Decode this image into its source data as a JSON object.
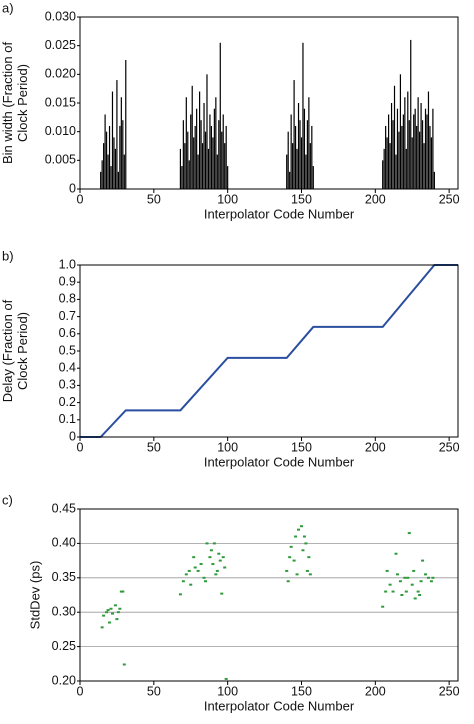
{
  "chart_data": [
    {
      "type": "bar",
      "label": "a)",
      "color": "#000000",
      "ylabel": [
        "Bin width (Fraction of",
        "Clock Period)"
      ],
      "xlabel": "Interpolator Code Number",
      "xlim": [
        0,
        256
      ],
      "xticks": [
        0,
        50,
        100,
        150,
        200,
        250
      ],
      "ylim": [
        0,
        0.03
      ],
      "yticks": [
        0,
        0.005,
        {
          "value": 0.01,
          "label": "0.010"
        },
        0.015,
        {
          "value": 0.02,
          "label": "0.020"
        },
        0.025,
        {
          "value": 0.03,
          "label": "0.030"
        }
      ],
      "grid": false,
      "x": [
        14,
        15,
        16,
        17,
        18,
        19,
        20,
        21,
        22,
        23,
        24,
        25,
        26,
        27,
        28,
        29,
        30,
        31,
        68,
        69,
        70,
        71,
        72,
        73,
        74,
        75,
        76,
        77,
        78,
        79,
        80,
        81,
        82,
        83,
        84,
        85,
        86,
        87,
        88,
        89,
        90,
        91,
        92,
        93,
        94,
        95,
        96,
        97,
        98,
        99,
        100,
        140,
        141,
        142,
        143,
        144,
        145,
        146,
        147,
        148,
        149,
        150,
        151,
        152,
        153,
        154,
        155,
        156,
        157,
        158,
        205,
        206,
        207,
        208,
        209,
        210,
        211,
        212,
        213,
        214,
        215,
        216,
        217,
        218,
        219,
        220,
        221,
        222,
        223,
        224,
        225,
        226,
        227,
        228,
        229,
        230,
        231,
        232,
        233,
        234,
        235,
        236,
        237,
        238,
        239,
        240
      ],
      "values": [
        0.003,
        0.005,
        0.008,
        0.013,
        0.01,
        0.006,
        0.011,
        0.004,
        0.017,
        0.009,
        0.007,
        0.019,
        0.003,
        0.011,
        0.016,
        0.012,
        0.006,
        0.0225,
        0.007,
        0.004,
        0.012,
        0.008,
        0.016,
        0.01,
        0.005,
        0.013,
        0.018,
        0.009,
        0.011,
        0.014,
        0.006,
        0.017,
        0.012,
        0.008,
        0.015,
        0.01,
        0.02,
        0.007,
        0.013,
        0.011,
        0.009,
        0.014,
        0.016,
        0.006,
        0.012,
        0.0255,
        0.01,
        0.013,
        0.008,
        0.011,
        0.004,
        0.006,
        0.01,
        0.003,
        0.013,
        0.008,
        0.019,
        0.011,
        0.007,
        0.015,
        0.012,
        0.009,
        0.0255,
        0.014,
        0.006,
        0.012,
        0.016,
        0.008,
        0.011,
        0.004,
        0.005,
        0.007,
        0.011,
        0.009,
        0.013,
        0.008,
        0.015,
        0.012,
        0.018,
        0.006,
        0.014,
        0.01,
        0.02,
        0.011,
        0.013,
        0.016,
        0.007,
        0.017,
        0.012,
        0.026,
        0.009,
        0.013,
        0.014,
        0.011,
        0.016,
        0.01,
        0.015,
        0.012,
        0.008,
        0.014,
        0.013,
        0.017,
        0.011,
        0.009,
        0.014,
        0.003
      ]
    },
    {
      "type": "line",
      "label": "b)",
      "color": "#2a4fa0",
      "ylabel": [
        "Delay (Fraction of",
        "Clock Period)"
      ],
      "xlabel": "Interpolator Code Number",
      "xlim": [
        0,
        256
      ],
      "xticks": [
        0,
        50,
        100,
        150,
        200,
        250
      ],
      "ylim": [
        0,
        1
      ],
      "yticks": [
        0,
        0.1,
        0.2,
        0.3,
        0.4,
        0.5,
        0.6,
        0.7,
        0.8,
        0.9,
        {
          "value": 1,
          "label": "1.0"
        }
      ],
      "grid": false,
      "x": [
        0,
        14,
        31,
        68,
        100,
        140,
        158,
        205,
        240,
        256
      ],
      "values": [
        0,
        0,
        0.155,
        0.155,
        0.46,
        0.46,
        0.64,
        0.64,
        1,
        1
      ]
    },
    {
      "type": "scatter",
      "label": "c)",
      "color": "#2e9a3a",
      "ylabel": [
        "StdDev (ps)"
      ],
      "xlabel": "Interpolator Code Number",
      "xlim": [
        0,
        256
      ],
      "xticks": [
        0,
        50,
        100,
        150,
        200,
        250
      ],
      "ylim": [
        0.2,
        0.45
      ],
      "yticks": [
        {
          "value": 0.2,
          "label": "0.20"
        },
        0.25,
        {
          "value": 0.3,
          "label": "0.30"
        },
        0.35,
        {
          "value": 0.4,
          "label": "0.40"
        },
        0.45
      ],
      "grid": true,
      "x": [
        15,
        16,
        18,
        19,
        20,
        21,
        22,
        24,
        25,
        26,
        27,
        28,
        29,
        30,
        68,
        70,
        72,
        74,
        75,
        77,
        78,
        80,
        82,
        84,
        85,
        86,
        88,
        89,
        90,
        91,
        92,
        93,
        94,
        95,
        96,
        97,
        98,
        99,
        140,
        141,
        142,
        143,
        145,
        146,
        147,
        148,
        150,
        151,
        152,
        153,
        154,
        155,
        156,
        205,
        207,
        208,
        210,
        212,
        214,
        215,
        217,
        218,
        220,
        221,
        222,
        223,
        225,
        226,
        227,
        229,
        230,
        231,
        232,
        234,
        236,
        238,
        239
      ],
      "values": [
        0.278,
        0.295,
        0.3,
        0.303,
        0.285,
        0.305,
        0.298,
        0.31,
        0.29,
        0.3,
        0.305,
        0.33,
        0.33,
        0.224,
        0.326,
        0.345,
        0.355,
        0.36,
        0.34,
        0.38,
        0.365,
        0.36,
        0.37,
        0.35,
        0.345,
        0.4,
        0.38,
        0.39,
        0.37,
        0.4,
        0.355,
        0.36,
        0.385,
        0.375,
        0.327,
        0.38,
        0.365,
        0.203,
        0.36,
        0.345,
        0.38,
        0.395,
        0.375,
        0.41,
        0.355,
        0.42,
        0.425,
        0.39,
        0.41,
        0.4,
        0.36,
        0.38,
        0.355,
        0.308,
        0.33,
        0.36,
        0.34,
        0.33,
        0.385,
        0.355,
        0.345,
        0.325,
        0.35,
        0.33,
        0.35,
        0.415,
        0.34,
        0.36,
        0.32,
        0.33,
        0.325,
        0.345,
        0.375,
        0.355,
        0.35,
        0.345,
        0.35
      ]
    }
  ]
}
